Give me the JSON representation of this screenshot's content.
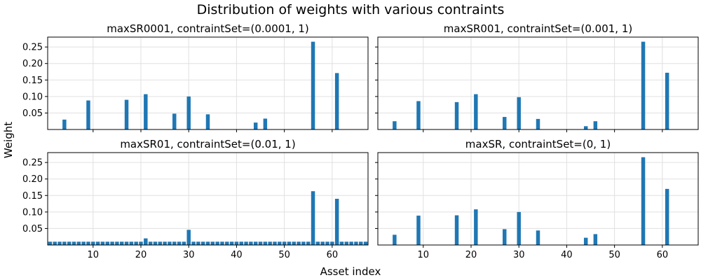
{
  "figure": {
    "title": "Distribution of weights with various contraints",
    "xlabel": "Asset index",
    "ylabel": "Weight"
  },
  "colors": {
    "bar": "#1f77b4",
    "grid": "#e0e0e0",
    "axis": "#000000"
  },
  "chart_data": [
    {
      "type": "bar",
      "title": "maxSR0001, contraintSet=(0.0001, 1)",
      "xlim": [
        0.5,
        67.5
      ],
      "ylim": [
        0,
        0.28
      ],
      "xticks": [
        10,
        20,
        30,
        40,
        50,
        60
      ],
      "yticks": [
        0.05,
        0.1,
        0.15,
        0.2,
        0.25
      ],
      "show_xticklabels": false,
      "show_yticklabels": true,
      "grid": true,
      "x": [
        4,
        9,
        17,
        21,
        27,
        30,
        34,
        44,
        46,
        56,
        61
      ],
      "values": [
        0.03,
        0.088,
        0.09,
        0.107,
        0.048,
        0.1,
        0.046,
        0.021,
        0.033,
        0.266,
        0.171
      ]
    },
    {
      "type": "bar",
      "title": "maxSR001, contraintSet=(0.001, 1)",
      "xlim": [
        0.5,
        67.5
      ],
      "ylim": [
        0,
        0.28
      ],
      "xticks": [
        10,
        20,
        30,
        40,
        50,
        60
      ],
      "yticks": [
        0.05,
        0.1,
        0.15,
        0.2,
        0.25
      ],
      "show_xticklabels": false,
      "show_yticklabels": false,
      "grid": true,
      "x": [
        4,
        9,
        17,
        21,
        27,
        30,
        34,
        44,
        46,
        56,
        61
      ],
      "values": [
        0.025,
        0.086,
        0.083,
        0.107,
        0.038,
        0.098,
        0.032,
        0.01,
        0.025,
        0.266,
        0.172
      ]
    },
    {
      "type": "bar",
      "title": "maxSR01, contraintSet=(0.01, 1)",
      "xlim": [
        0.5,
        67.5
      ],
      "ylim": [
        0,
        0.28
      ],
      "xticks": [
        10,
        20,
        30,
        40,
        50,
        60
      ],
      "yticks": [
        0.05,
        0.1,
        0.15,
        0.2,
        0.25
      ],
      "show_xticklabels": true,
      "show_yticklabels": true,
      "grid": true,
      "baseline_all_assets": {
        "from": 1,
        "to": 67,
        "value": 0.01
      },
      "x": [
        21,
        30,
        56,
        61
      ],
      "values": [
        0.02,
        0.046,
        0.163,
        0.14
      ]
    },
    {
      "type": "bar",
      "title": "maxSR, contraintSet=(0, 1)",
      "xlim": [
        0.5,
        67.5
      ],
      "ylim": [
        0,
        0.28
      ],
      "xticks": [
        10,
        20,
        30,
        40,
        50,
        60
      ],
      "yticks": [
        0.05,
        0.1,
        0.15,
        0.2,
        0.25
      ],
      "show_xticklabels": true,
      "show_yticklabels": false,
      "grid": true,
      "x": [
        4,
        9,
        17,
        21,
        27,
        30,
        34,
        44,
        46,
        56,
        61
      ],
      "values": [
        0.031,
        0.089,
        0.09,
        0.108,
        0.048,
        0.1,
        0.044,
        0.022,
        0.033,
        0.266,
        0.17
      ]
    }
  ]
}
